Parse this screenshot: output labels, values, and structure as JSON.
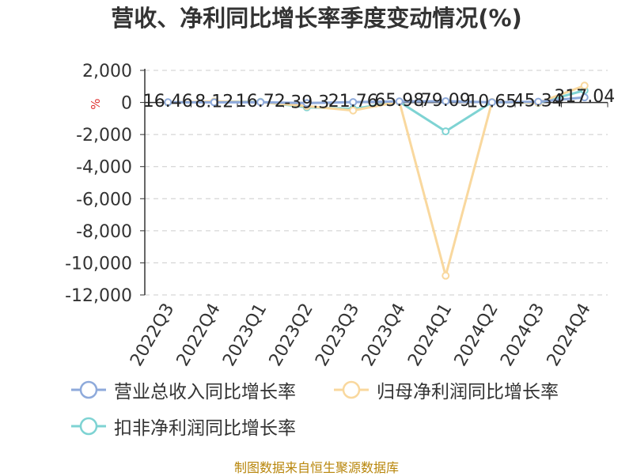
{
  "chart_data": {
    "type": "line",
    "title": "营收、净利同比增长率季度变动情况(%)",
    "ylabel": "%",
    "xlabel": "",
    "categories": [
      "2022Q3",
      "2022Q4",
      "2023Q1",
      "2023Q2",
      "2023Q3",
      "2023Q4",
      "2024Q1",
      "2024Q2",
      "2024Q3",
      "2024Q4"
    ],
    "ylim": [
      -12000,
      2000
    ],
    "yticks": [
      2000,
      0,
      -2000,
      -4000,
      -6000,
      -8000,
      -10000,
      -12000
    ],
    "ytick_labels": [
      "2,000",
      "0",
      "-2,000",
      "-4,000",
      "-6,000",
      "-8,000",
      "-10,000",
      "-12,000"
    ],
    "grid": true,
    "legend_position": "bottom",
    "series": [
      {
        "name": "营业总收入同比增长率",
        "color": "#8eaadb",
        "values": [
          16.46,
          8.12,
          16.72,
          -39.3,
          21.76,
          65.98,
          79.09,
          10.65,
          45.34,
          317.04
        ],
        "labels": [
          "16.46",
          "8.12",
          "16.72",
          "-39.3",
          "21.76",
          "65.98",
          "79.09",
          "10.65",
          "45.34",
          "317.04"
        ]
      },
      {
        "name": "归母净利润同比增长率",
        "color": "#f9d89e",
        "values": [
          10,
          60,
          20,
          -230,
          -500,
          50,
          -10800,
          30,
          -20,
          1050
        ]
      },
      {
        "name": "扣非净利润同比增长率",
        "color": "#7ed3d3",
        "values": [
          0,
          50,
          40,
          -300,
          -400,
          40,
          -1800,
          20,
          -30,
          750
        ]
      }
    ]
  },
  "footer": {
    "source": "制图数据来自恒生聚源数据库"
  }
}
